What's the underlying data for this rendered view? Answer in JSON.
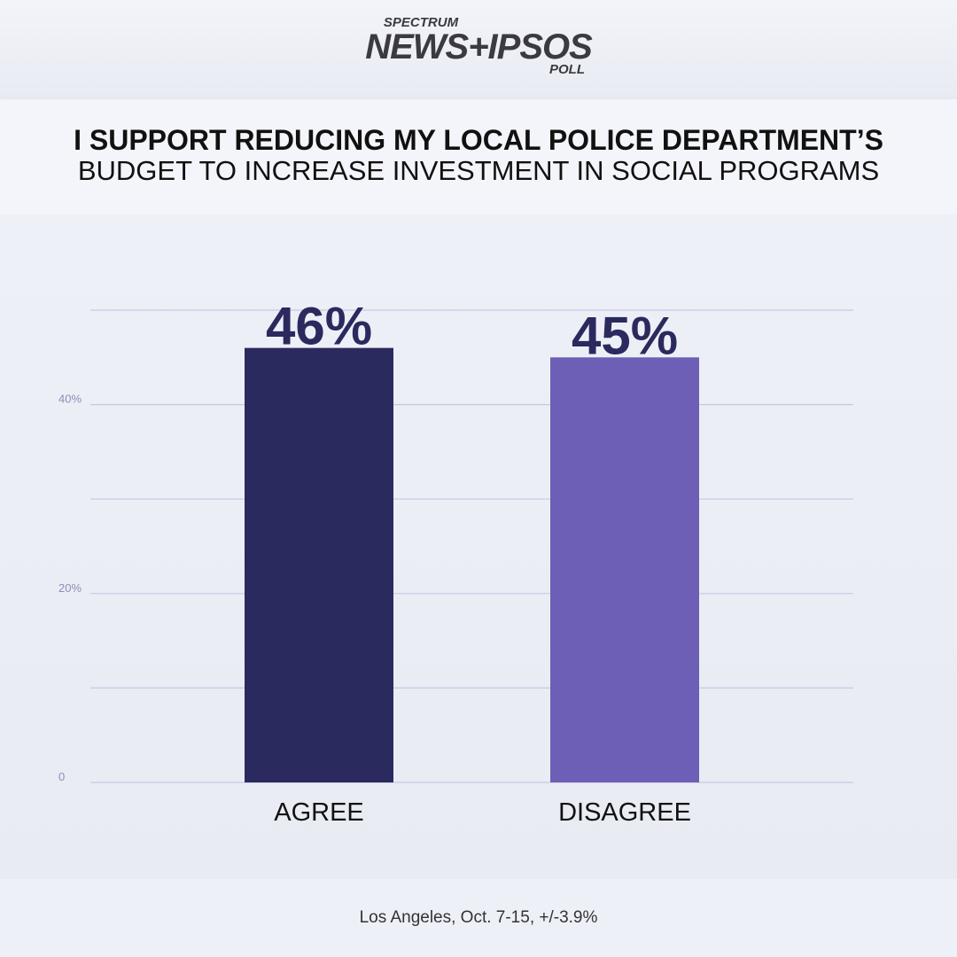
{
  "logo": {
    "top": "SPECTRUM",
    "main": "NEWS+IPSOS",
    "bottom": "POLL"
  },
  "chart_data": {
    "type": "bar",
    "title": "I SUPPORT REDUCING MY LOCAL POLICE DEPARTMENT’S",
    "subtitle": "BUDGET TO INCREASE INVESTMENT IN SOCIAL PROGRAMS",
    "categories": [
      "AGREE",
      "DISAGREE"
    ],
    "values": [
      46,
      45
    ],
    "data_labels": [
      "46%",
      "45%"
    ],
    "bar_colors": [
      "#2b2a5e",
      "#6c5fb5"
    ],
    "yticks": [
      {
        "value": 0,
        "label": "0"
      },
      {
        "value": 20,
        "label": "20%"
      },
      {
        "value": 40,
        "label": "40%"
      }
    ],
    "gridlines": [
      0,
      10,
      20,
      30,
      40,
      50
    ],
    "ylim": [
      0,
      50
    ],
    "grid": true
  },
  "footer": "Los Angeles, Oct. 7-15, +/-3.9%"
}
